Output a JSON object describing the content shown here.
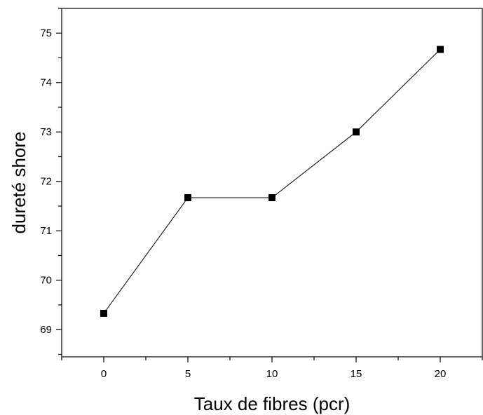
{
  "chart_data": {
    "type": "line",
    "title": "",
    "xlabel": "Taux de fibres (pcr)",
    "ylabel": "dureté shore",
    "xlim": [
      -2.5,
      22.5
    ],
    "ylim": [
      68.45,
      75.5
    ],
    "xticks": [
      0,
      5,
      10,
      15,
      20
    ],
    "xtick_labels": [
      "0",
      "5",
      "10",
      "15",
      "20"
    ],
    "yticks": [
      69,
      70,
      71,
      72,
      73,
      74,
      75
    ],
    "ytick_labels": [
      "69",
      "70",
      "71",
      "72",
      "73",
      "74",
      "75"
    ],
    "grid": false,
    "legend": "none",
    "marker": "square",
    "colors": {
      "line": "#000000",
      "marker": "#000000"
    },
    "series": [
      {
        "x": [
          0,
          5,
          10,
          15,
          20
        ],
        "values": [
          69.33,
          71.67,
          71.67,
          73.0,
          74.67
        ]
      }
    ]
  }
}
